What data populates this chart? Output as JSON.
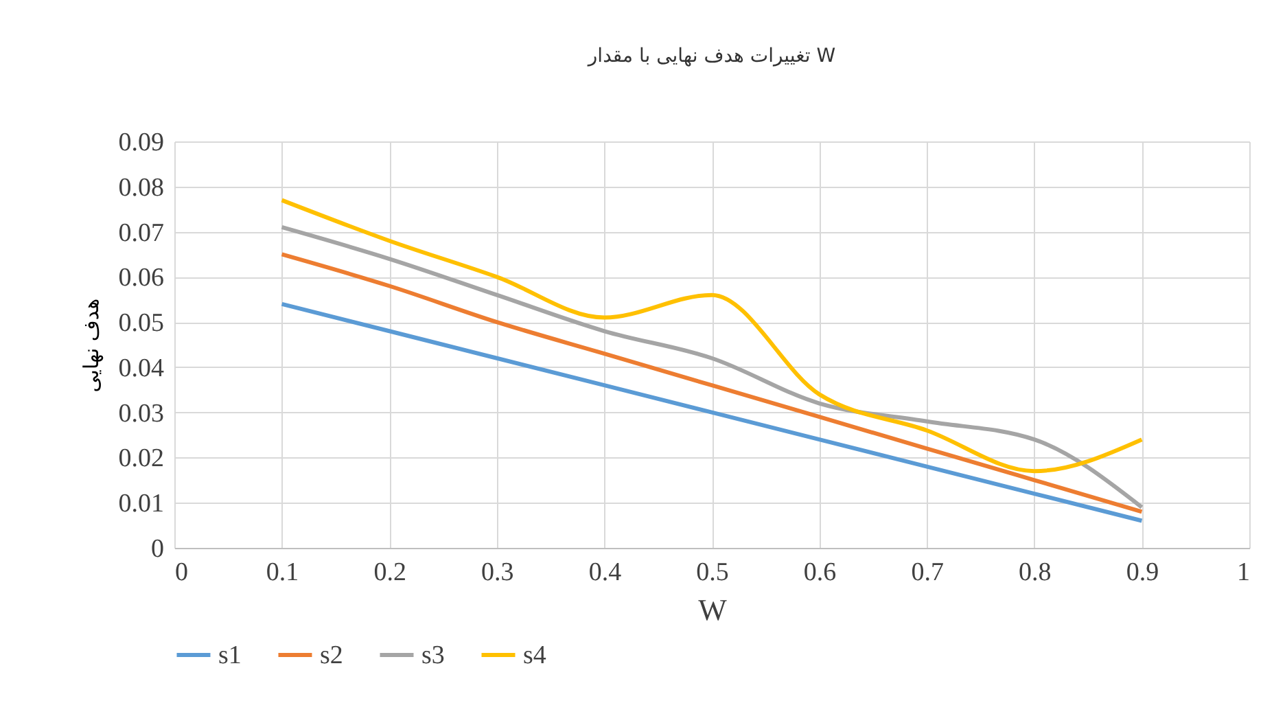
{
  "chart_data": {
    "type": "line",
    "title": "تغییرات هدف نهایی با مقدار W",
    "xlabel": "W",
    "ylabel": "هدف نهایی",
    "x": [
      0.1,
      0.2,
      0.3,
      0.4,
      0.5,
      0.6,
      0.7,
      0.8,
      0.9
    ],
    "series": [
      {
        "name": "s1",
        "color": "#5b9bd5",
        "values": [
          0.054,
          0.048,
          0.042,
          0.036,
          0.03,
          0.024,
          0.018,
          0.012,
          0.006
        ]
      },
      {
        "name": "s2",
        "color": "#ed7d31",
        "values": [
          0.065,
          0.058,
          0.05,
          0.043,
          0.036,
          0.029,
          0.022,
          0.015,
          0.008
        ]
      },
      {
        "name": "s3",
        "color": "#a5a5a5",
        "values": [
          0.071,
          0.064,
          0.056,
          0.048,
          0.042,
          0.032,
          0.028,
          0.024,
          0.009
        ]
      },
      {
        "name": "s4",
        "color": "#ffc000",
        "values": [
          0.077,
          0.068,
          0.06,
          0.051,
          0.056,
          0.034,
          0.026,
          0.017,
          0.024
        ]
      }
    ],
    "xlim": [
      0,
      1
    ],
    "xticks": [
      0,
      0.1,
      0.2,
      0.3,
      0.4,
      0.5,
      0.6,
      0.7,
      0.8,
      0.9,
      1
    ],
    "ylim": [
      0,
      0.09
    ],
    "yticks": [
      0,
      0.01,
      0.02,
      0.03,
      0.04,
      0.05,
      0.06,
      0.07,
      0.08,
      0.09
    ],
    "grid": true,
    "legend": "bottom",
    "marker": "none",
    "line_style": "solid"
  }
}
